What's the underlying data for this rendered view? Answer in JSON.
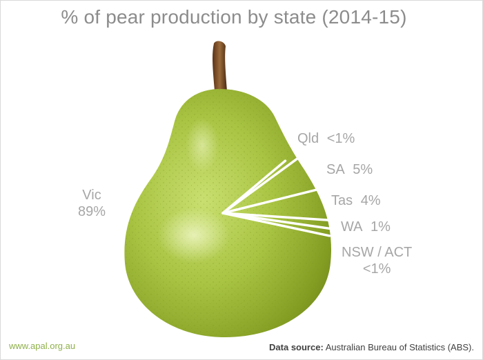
{
  "chart_data": {
    "type": "pie",
    "title": "% of pear production by state (2014-15)",
    "categories": [
      "Vic",
      "Qld",
      "SA",
      "Tas",
      "WA",
      "NSW / ACT"
    ],
    "value_labels": [
      "89%",
      "<1%",
      "5%",
      "4%",
      "1%",
      "<1%"
    ],
    "values": [
      89,
      0.5,
      5,
      4,
      1,
      0.5
    ],
    "slice_color": "#ffffff",
    "legend": "none"
  },
  "footer": {
    "url": "www.apal.org.au",
    "source_label": "Data source:",
    "source_text": "Australian Bureau of Statistics (ABS)."
  },
  "colors": {
    "title": "#8c8c8c",
    "labels": "#a6a6a6",
    "pear_green": "#a8c44a",
    "stem": "#7a4a24",
    "url": "#8fb04a"
  },
  "icons": [
    "pear-image"
  ]
}
